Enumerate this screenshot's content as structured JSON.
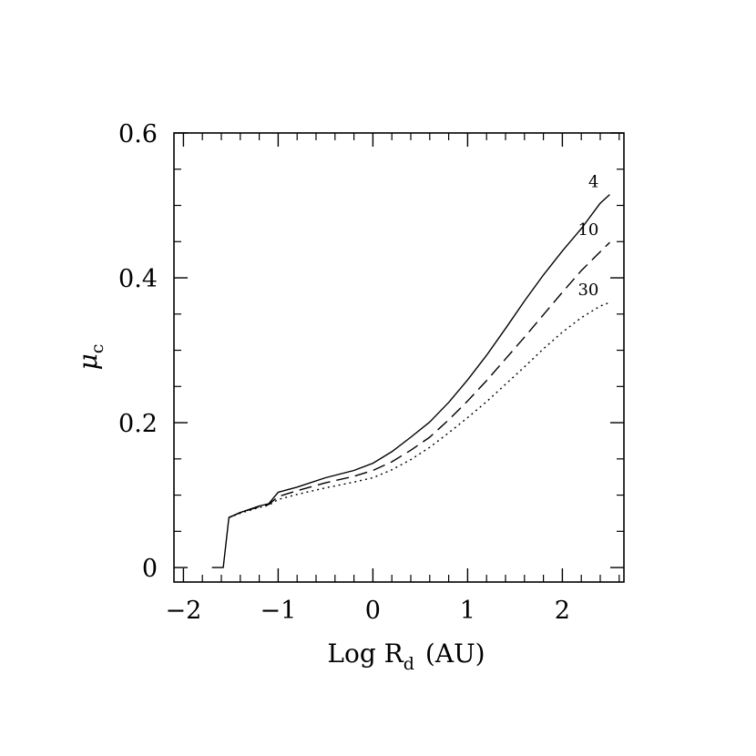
{
  "chart_data": {
    "type": "line",
    "xlabel": "Log R",
    "xlabel_sub": "d",
    "xlabel_unit": "(AU)",
    "ylabel": "μ",
    "ylabel_sub": "c",
    "xlim": [
      -2.1,
      2.65
    ],
    "ylim": [
      -0.02,
      0.6
    ],
    "x_ticks": [
      {
        "value": -2,
        "label": "−2"
      },
      {
        "value": -1,
        "label": "−1"
      },
      {
        "value": 0,
        "label": "0"
      },
      {
        "value": 1,
        "label": "1"
      },
      {
        "value": 2,
        "label": "2"
      }
    ],
    "y_ticks": [
      {
        "value": 0,
        "label": "0"
      },
      {
        "value": 0.2,
        "label": "0.2"
      },
      {
        "value": 0.4,
        "label": "0.4"
      },
      {
        "value": 0.6,
        "label": "0.6"
      }
    ],
    "grid": false,
    "series": [
      {
        "name": "4",
        "style": "solid",
        "points": [
          [
            -1.7,
            0.0
          ],
          [
            -1.58,
            0.0
          ],
          [
            -1.52,
            0.069
          ],
          [
            -1.4,
            0.076
          ],
          [
            -1.2,
            0.085
          ],
          [
            -1.1,
            0.088
          ],
          [
            -1.0,
            0.104
          ],
          [
            -0.8,
            0.111
          ],
          [
            -0.5,
            0.124
          ],
          [
            -0.2,
            0.134
          ],
          [
            0.0,
            0.144
          ],
          [
            0.2,
            0.16
          ],
          [
            0.4,
            0.18
          ],
          [
            0.6,
            0.201
          ],
          [
            0.8,
            0.228
          ],
          [
            1.0,
            0.259
          ],
          [
            1.2,
            0.293
          ],
          [
            1.4,
            0.33
          ],
          [
            1.6,
            0.368
          ],
          [
            1.8,
            0.404
          ],
          [
            2.0,
            0.437
          ],
          [
            2.2,
            0.468
          ],
          [
            2.4,
            0.503
          ],
          [
            2.5,
            0.515
          ]
        ]
      },
      {
        "name": "10",
        "style": "dashed",
        "points": [
          [
            -1.52,
            0.069
          ],
          [
            -1.4,
            0.076
          ],
          [
            -1.2,
            0.084
          ],
          [
            -1.1,
            0.087
          ],
          [
            -1.0,
            0.098
          ],
          [
            -0.8,
            0.106
          ],
          [
            -0.5,
            0.117
          ],
          [
            -0.2,
            0.126
          ],
          [
            0.0,
            0.134
          ],
          [
            0.2,
            0.146
          ],
          [
            0.4,
            0.162
          ],
          [
            0.6,
            0.18
          ],
          [
            0.8,
            0.204
          ],
          [
            1.0,
            0.23
          ],
          [
            1.2,
            0.258
          ],
          [
            1.4,
            0.288
          ],
          [
            1.6,
            0.318
          ],
          [
            1.8,
            0.349
          ],
          [
            2.0,
            0.38
          ],
          [
            2.2,
            0.41
          ],
          [
            2.4,
            0.436
          ],
          [
            2.5,
            0.449
          ]
        ]
      },
      {
        "name": "30",
        "style": "dotted",
        "points": [
          [
            -1.52,
            0.069
          ],
          [
            -1.4,
            0.075
          ],
          [
            -1.2,
            0.083
          ],
          [
            -1.1,
            0.086
          ],
          [
            -1.0,
            0.094
          ],
          [
            -0.8,
            0.101
          ],
          [
            -0.5,
            0.11
          ],
          [
            -0.2,
            0.118
          ],
          [
            0.0,
            0.124
          ],
          [
            0.2,
            0.135
          ],
          [
            0.4,
            0.149
          ],
          [
            0.6,
            0.166
          ],
          [
            0.8,
            0.186
          ],
          [
            1.0,
            0.207
          ],
          [
            1.2,
            0.229
          ],
          [
            1.4,
            0.253
          ],
          [
            1.6,
            0.277
          ],
          [
            1.8,
            0.302
          ],
          [
            2.0,
            0.325
          ],
          [
            2.2,
            0.345
          ],
          [
            2.4,
            0.361
          ],
          [
            2.5,
            0.366
          ]
        ]
      }
    ]
  }
}
